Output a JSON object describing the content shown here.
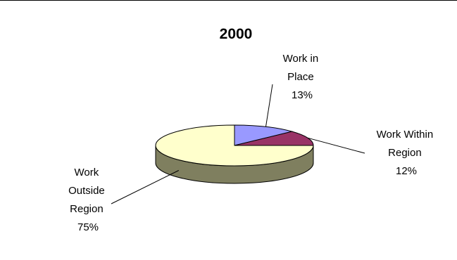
{
  "chart_data": {
    "type": "pie",
    "title": "2000",
    "three_d": true,
    "categories": [
      "Work in Place",
      "Work Within Region",
      "Work Outside Region"
    ],
    "values": [
      13,
      12,
      75
    ],
    "label_lines": {
      "work_in_place": [
        "Work in",
        "Place",
        "13%"
      ],
      "work_within_region": [
        "Work Within",
        "Region",
        "12%"
      ],
      "work_outside_region": [
        "Work",
        "Outside",
        "Region",
        "75%"
      ]
    },
    "colors": {
      "work_in_place": "#9999ff",
      "work_within_region": "#993366",
      "work_outside_region": "#ffffcc",
      "side": "#7f7f5f",
      "outline": "#000000"
    },
    "legend": "none"
  }
}
